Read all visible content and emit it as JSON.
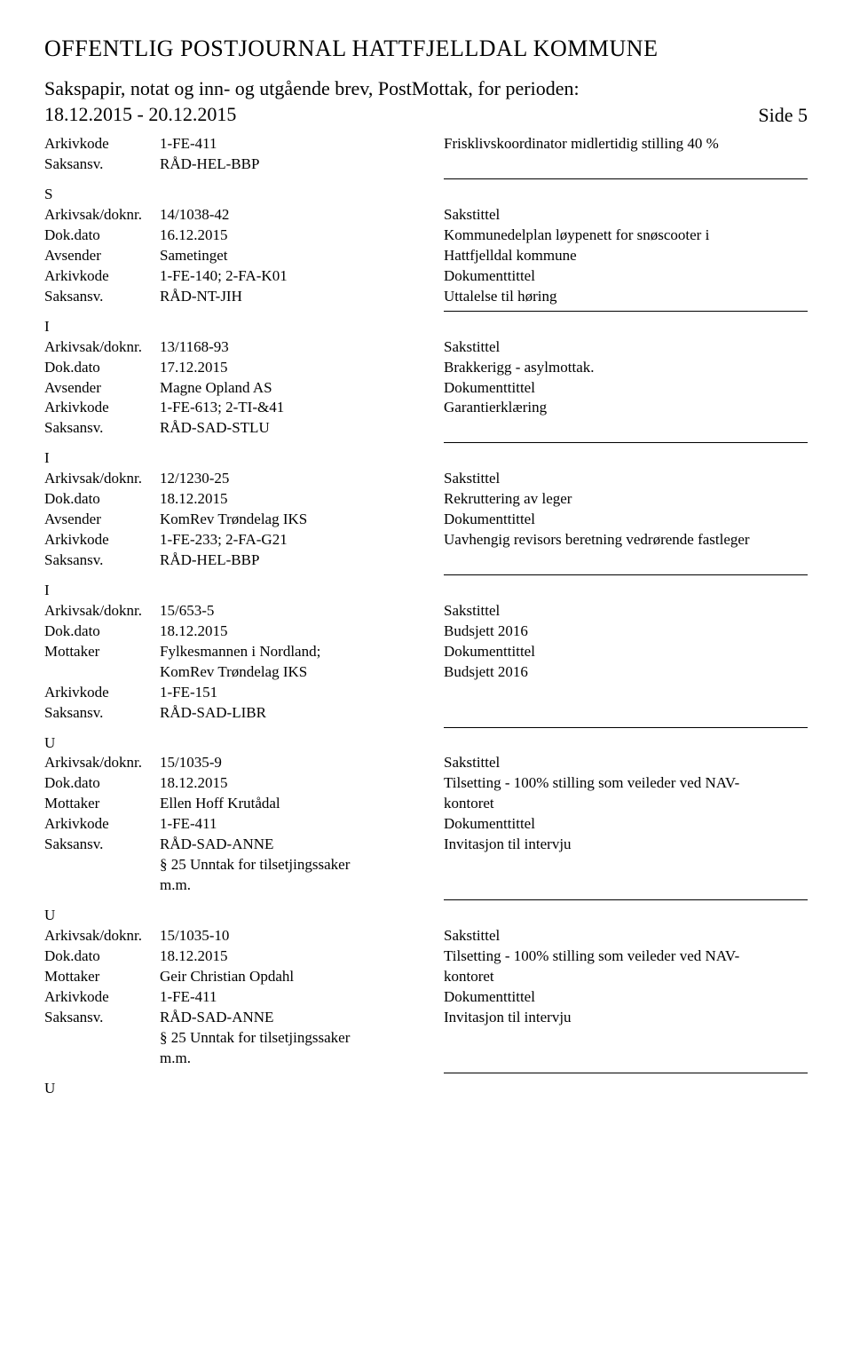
{
  "header": {
    "main_title": "OFFENTLIG POSTJOURNAL HATTFJELLDAL KOMMUNE",
    "subtitle_line1": "Sakspapir, notat og inn- og utgående brev, PostMottak, for perioden:",
    "subtitle_line2": "18.12.2015 - 20.12.2015",
    "side_label": "Side 5"
  },
  "labels": {
    "arkivkode": "Arkivkode",
    "saksansv": "Saksansv.",
    "arkivsak": "Arkivsak/doknr.",
    "dokdato": "Dok.dato",
    "avsender": "Avsender",
    "mottaker": "Mottaker",
    "sakstittel": "Sakstittel",
    "dokumenttittel": "Dokumenttittel"
  },
  "top_fragment": {
    "arkivkode": "1-FE-411",
    "saksansv": "RÅD-HEL-BBP",
    "sakstittel_text": "Frisklivskoordinator midlertidig stilling 40 %"
  },
  "records": [
    {
      "type": "S",
      "arkivsak": "14/1038-42",
      "dokdato": "16.12.2015",
      "party_label": "Avsender",
      "party": "Sametinget",
      "arkivkode": "1-FE-140; 2-FA-K01",
      "saksansv": "RÅD-NT-JIH",
      "sakstittel": "Kommunedelplan løypenett for snøscooter i\nHattfjelldal kommune",
      "doktittel": "Uttalelse til høring",
      "exemption": ""
    },
    {
      "type": "I",
      "arkivsak": "13/1168-93",
      "dokdato": "17.12.2015",
      "party_label": "Avsender",
      "party": "Magne Opland AS",
      "arkivkode": "1-FE-613; 2-TI-&41",
      "saksansv": "RÅD-SAD-STLU",
      "sakstittel": "Brakkerigg - asylmottak.",
      "doktittel": "Garantierklæring",
      "exemption": ""
    },
    {
      "type": "I",
      "arkivsak": "12/1230-25",
      "dokdato": "18.12.2015",
      "party_label": "Avsender",
      "party": "KomRev Trøndelag IKS",
      "arkivkode": "1-FE-233; 2-FA-G21",
      "saksansv": "RÅD-HEL-BBP",
      "sakstittel": "Rekruttering av leger",
      "doktittel": "Uavhengig revisors beretning vedrørende fastleger",
      "exemption": ""
    },
    {
      "type": "I",
      "arkivsak": "15/653-5",
      "dokdato": "18.12.2015",
      "party_label": "Mottaker",
      "party": "Fylkesmannen i Nordland;\nKomRev Trøndelag IKS",
      "arkivkode": "1-FE-151",
      "saksansv": "RÅD-SAD-LIBR",
      "sakstittel": "Budsjett 2016",
      "doktittel": "Budsjett 2016",
      "exemption": ""
    },
    {
      "type": "U",
      "arkivsak": "15/1035-9",
      "dokdato": "18.12.2015",
      "party_label": "Mottaker",
      "party": "Ellen Hoff Krutådal",
      "arkivkode": "1-FE-411",
      "saksansv": "RÅD-SAD-ANNE",
      "sakstittel": "Tilsetting - 100% stilling som veileder ved NAV-\nkontoret",
      "doktittel": "Invitasjon til intervju",
      "exemption": "§ 25 Unntak for tilsetjingssaker\nm.m."
    },
    {
      "type": "U",
      "arkivsak": "15/1035-10",
      "dokdato": "18.12.2015",
      "party_label": "Mottaker",
      "party": "Geir Christian Opdahl",
      "arkivkode": "1-FE-411",
      "saksansv": "RÅD-SAD-ANNE",
      "sakstittel": "Tilsetting - 100% stilling som veileder ved NAV-\nkontoret",
      "doktittel": "Invitasjon til intervju",
      "exemption": "§ 25 Unntak for tilsetjingssaker\nm.m."
    }
  ],
  "trailing_type": "U"
}
